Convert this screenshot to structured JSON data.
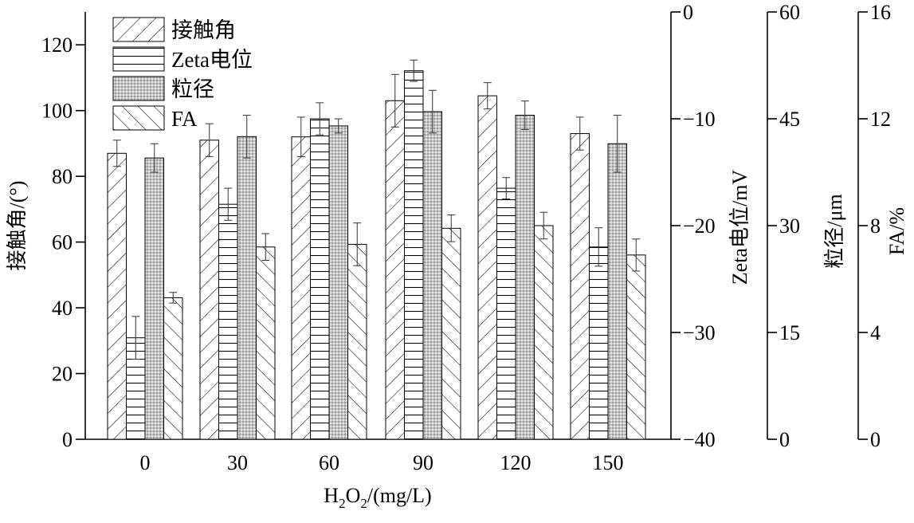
{
  "chart_data": {
    "type": "bar",
    "categories": [
      "0",
      "30",
      "60",
      "90",
      "120",
      "150"
    ],
    "xlabel": {
      "main": "H",
      "sub1": "2",
      "mid": "O",
      "sub2": "2",
      "tail": "/(mg/L)"
    },
    "series": [
      {
        "name": "接触角",
        "axis": "y1",
        "pattern": "hatch-fwd",
        "values": [
          87,
          91,
          92,
          103,
          104.5,
          93
        ],
        "errors": [
          4,
          5,
          6,
          8,
          4,
          5
        ]
      },
      {
        "name": "Zeta电位",
        "axis": "y2",
        "pattern": "hatch-horiz",
        "values": [
          -30.5,
          -18,
          -10,
          -5.5,
          -16.5,
          -22
        ],
        "errors": [
          2,
          1.5,
          1.5,
          1,
          1,
          1.8
        ]
      },
      {
        "name": "粒径",
        "axis": "y3",
        "pattern": "grid-gray",
        "values": [
          39.5,
          42.5,
          44,
          46,
          45.5,
          41.5
        ],
        "errors": [
          2,
          3,
          1,
          3,
          2,
          4
        ]
      },
      {
        "name": "FA",
        "axis": "y4",
        "pattern": "hatch-back",
        "values": [
          5.3,
          7.2,
          7.3,
          7.9,
          8,
          6.9
        ],
        "errors": [
          0.2,
          0.5,
          0.8,
          0.5,
          0.5,
          0.6
        ]
      }
    ],
    "axes": {
      "y1": {
        "label": "接触角/(°)",
        "min": 0,
        "max": 130,
        "ticks": [
          0,
          20,
          40,
          60,
          80,
          100,
          120
        ]
      },
      "y2": {
        "label": "Zeta电位/mV",
        "min": -40,
        "max": 0,
        "ticks": [
          -40,
          -30,
          -20,
          -10,
          0
        ]
      },
      "y3": {
        "label": "粒径/μm",
        "min": 0,
        "max": 60,
        "ticks": [
          0,
          15,
          30,
          45,
          60
        ]
      },
      "y4": {
        "label": "FA/%",
        "min": 0,
        "max": 16,
        "ticks": [
          0,
          4,
          8,
          12,
          16
        ]
      }
    },
    "legend": {
      "position": "top-left"
    }
  }
}
